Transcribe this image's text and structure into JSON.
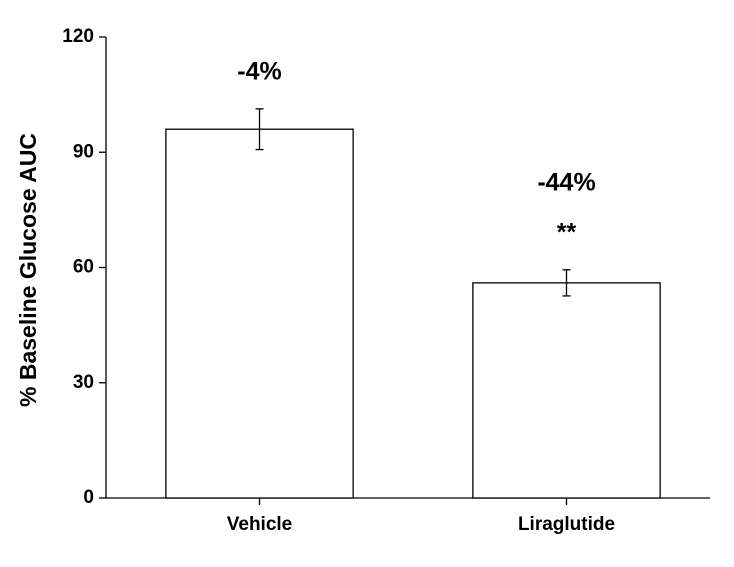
{
  "chart_data": {
    "type": "bar",
    "y_label": "% Baseline Glucose AUC",
    "categories": [
      "Vehicle",
      "Liraglutide"
    ],
    "values": [
      96,
      56
    ],
    "errors": [
      5.3,
      3.4
    ],
    "color": "#ffffff",
    "annotations": [
      [
        "-4%"
      ],
      [
        "-44%",
        "**"
      ]
    ],
    "ylim": [
      0,
      120
    ],
    "yticks": [
      0,
      30,
      60,
      90,
      120
    ],
    "grid": false
  }
}
